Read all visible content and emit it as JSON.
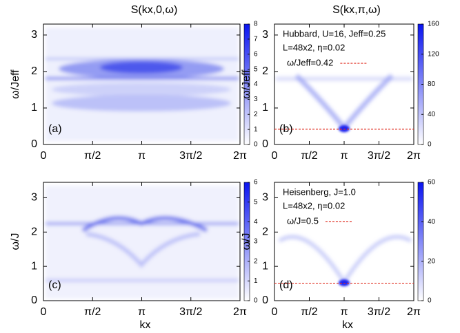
{
  "chart_data": [
    {
      "type": "heatmap",
      "title": "S(kx,0,ω)",
      "ylabel": "ω/Jeff",
      "panel_label": "(a)",
      "xlim": [
        0,
        6.2832
      ],
      "xticks": [
        0,
        {
          "value": 1.5708,
          "label": "π/2"
        },
        {
          "value": 3.1416,
          "label": "π"
        },
        {
          "value": 4.7124,
          "label": "3π/2"
        },
        {
          "value": 6.2832,
          "label": "2π"
        }
      ],
      "ylim": [
        0,
        3.3
      ],
      "yticks": [
        0,
        1,
        2,
        3
      ],
      "zlim": [
        0,
        8
      ],
      "zticks": [
        0,
        1,
        2,
        3,
        4,
        5,
        6,
        7,
        8
      ],
      "colors": [
        "#ffffff",
        "#0a14f0"
      ]
    },
    {
      "type": "heatmap",
      "title": "S(kx,π,ω)",
      "ylabel": "ω/Jeff",
      "panel_label": "(b)",
      "xlim": [
        0,
        6.2832
      ],
      "xticks": [
        0,
        {
          "value": 1.5708,
          "label": "π/2"
        },
        {
          "value": 3.1416,
          "label": "π"
        },
        {
          "value": 4.7124,
          "label": "3π/2"
        },
        {
          "value": 6.2832,
          "label": "2π"
        }
      ],
      "ylim": [
        0,
        3.3
      ],
      "yticks": [
        0,
        1,
        2,
        3
      ],
      "zlim": [
        0,
        160
      ],
      "zticks": [
        0,
        40,
        80,
        120,
        160
      ],
      "colors": [
        "#ffffff",
        "#0a14f0"
      ],
      "annotations": [
        "Hubbard, U=16, Jeff=0.25",
        "L=48x2, η=0.02"
      ],
      "hline": {
        "value": 0.42,
        "label": "ω/Jeff=0.42",
        "color": "#e03024"
      }
    },
    {
      "type": "heatmap",
      "ylabel": "ω/J",
      "xlabel": "kx",
      "panel_label": "(c)",
      "xlim": [
        0,
        6.2832
      ],
      "xticks": [
        0,
        {
          "value": 1.5708,
          "label": "π/2"
        },
        {
          "value": 3.1416,
          "label": "π"
        },
        {
          "value": 4.7124,
          "label": "3π/2"
        },
        {
          "value": 6.2832,
          "label": "2π"
        }
      ],
      "ylim": [
        0,
        3.45
      ],
      "yticks": [
        0,
        1,
        2,
        3
      ],
      "zlim": [
        0,
        6
      ],
      "zticks": [
        0,
        1,
        2,
        3,
        4,
        5,
        6
      ],
      "colors": [
        "#ffffff",
        "#0a14f0"
      ]
    },
    {
      "type": "heatmap",
      "ylabel": "ω/J",
      "xlabel": "kx",
      "panel_label": "(d)",
      "xlim": [
        0,
        6.2832
      ],
      "xticks": [
        0,
        {
          "value": 1.5708,
          "label": "π/2"
        },
        {
          "value": 3.1416,
          "label": "π"
        },
        {
          "value": 4.7124,
          "label": "3π/2"
        },
        {
          "value": 6.2832,
          "label": "2π"
        }
      ],
      "ylim": [
        0,
        3.45
      ],
      "yticks": [
        0,
        1,
        2,
        3
      ],
      "zlim": [
        0,
        60
      ],
      "zticks": [
        0,
        20,
        40,
        60
      ],
      "colors": [
        "#ffffff",
        "#0a14f0"
      ],
      "annotations": [
        "Heisenberg, J=1.0",
        "L=48x2, η=0.02"
      ],
      "hline": {
        "value": 0.5,
        "label": "ω/J=0.5",
        "color": "#e03024"
      }
    }
  ]
}
